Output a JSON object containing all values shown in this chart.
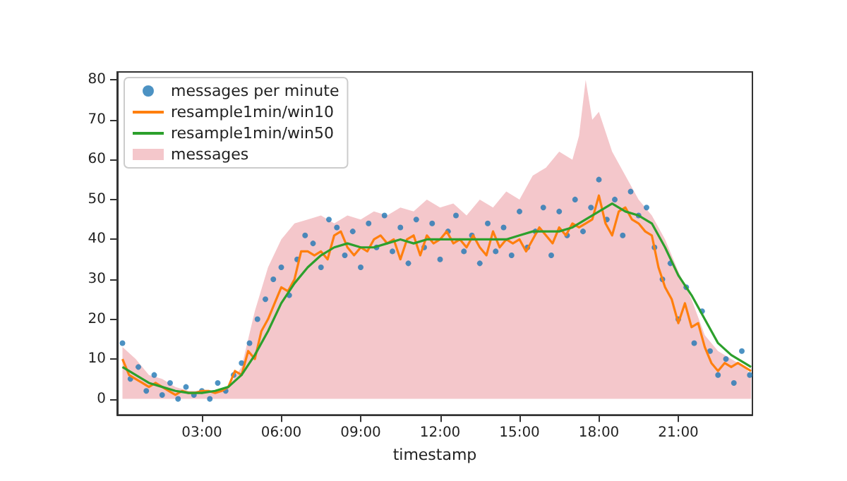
{
  "chart_data": {
    "type": "line",
    "xlabel": "timestamp",
    "xlim": [
      -0.2,
      23.8
    ],
    "ylim": [
      -4,
      82
    ],
    "xticks": [
      {
        "value": 3,
        "label": "03:00"
      },
      {
        "value": 6,
        "label": "06:00"
      },
      {
        "value": 9,
        "label": "09:00"
      },
      {
        "value": 12,
        "label": "12:00"
      },
      {
        "value": 15,
        "label": "15:00"
      },
      {
        "value": 18,
        "label": "18:00"
      },
      {
        "value": 21,
        "label": "21:00"
      }
    ],
    "yticks": [
      0,
      10,
      20,
      30,
      40,
      50,
      60,
      70,
      80
    ],
    "grid": false,
    "legend": "top left",
    "series": [
      {
        "name": "messages per minute",
        "type": "scatter",
        "marker": "circle",
        "color": "#1f77b4",
        "x": [
          0,
          0.3,
          0.6,
          0.9,
          1.2,
          1.5,
          1.8,
          2.1,
          2.4,
          2.7,
          3,
          3.3,
          3.6,
          3.9,
          4.2,
          4.5,
          4.8,
          5.1,
          5.4,
          5.7,
          6,
          6.3,
          6.6,
          6.9,
          7.2,
          7.5,
          7.8,
          8.1,
          8.4,
          8.7,
          9,
          9.3,
          9.6,
          9.9,
          10.2,
          10.5,
          10.8,
          11.1,
          11.4,
          11.7,
          12,
          12.3,
          12.6,
          12.9,
          13.2,
          13.5,
          13.8,
          14.1,
          14.4,
          14.7,
          15,
          15.3,
          15.6,
          15.9,
          16.2,
          16.5,
          16.8,
          17.1,
          17.4,
          17.7,
          18,
          18.3,
          18.6,
          18.9,
          19.2,
          19.5,
          19.8,
          20.1,
          20.4,
          20.7,
          21,
          21.3,
          21.6,
          21.9,
          22.2,
          22.5,
          22.8,
          23.1,
          23.4,
          23.7
        ],
        "values": [
          14,
          5,
          8,
          2,
          6,
          1,
          4,
          0,
          3,
          1,
          2,
          0,
          4,
          2,
          6,
          9,
          14,
          20,
          25,
          30,
          33,
          26,
          35,
          41,
          39,
          33,
          45,
          43,
          36,
          42,
          33,
          44,
          38,
          46,
          37,
          43,
          34,
          45,
          38,
          44,
          35,
          42,
          46,
          37,
          41,
          34,
          44,
          37,
          43,
          36,
          47,
          38,
          42,
          48,
          36,
          47,
          41,
          50,
          42,
          48,
          55,
          45,
          50,
          41,
          52,
          46,
          48,
          38,
          30,
          34,
          20,
          28,
          14,
          22,
          12,
          6,
          10,
          4,
          12,
          6
        ]
      },
      {
        "name": "resample1min/win10",
        "marker": "none",
        "color": "#ff7f0e",
        "x": [
          0,
          0.25,
          0.5,
          0.75,
          1,
          1.25,
          1.5,
          1.75,
          2,
          2.25,
          2.5,
          2.75,
          3,
          3.25,
          3.5,
          3.75,
          4,
          4.25,
          4.5,
          4.75,
          5,
          5.25,
          5.5,
          5.75,
          6,
          6.25,
          6.5,
          6.75,
          7,
          7.25,
          7.5,
          7.75,
          8,
          8.25,
          8.5,
          8.75,
          9,
          9.25,
          9.5,
          9.75,
          10,
          10.25,
          10.5,
          10.75,
          11,
          11.25,
          11.5,
          11.75,
          12,
          12.25,
          12.5,
          12.75,
          13,
          13.25,
          13.5,
          13.75,
          14,
          14.25,
          14.5,
          14.75,
          15,
          15.25,
          15.5,
          15.75,
          16,
          16.25,
          16.5,
          16.75,
          17,
          17.25,
          17.5,
          17.75,
          18,
          18.25,
          18.5,
          18.75,
          19,
          19.25,
          19.5,
          19.75,
          20,
          20.25,
          20.5,
          20.75,
          21,
          21.25,
          21.5,
          21.75,
          22,
          22.25,
          22.5,
          22.75,
          23,
          23.25,
          23.5,
          23.75
        ],
        "values": [
          10,
          6,
          5,
          4,
          3,
          4,
          3,
          2,
          1,
          2,
          1.5,
          1.5,
          2,
          2,
          1.5,
          2,
          3,
          7,
          6,
          12,
          10,
          17,
          20,
          24,
          28,
          27,
          30,
          37,
          37,
          36,
          37,
          35,
          41,
          42,
          38,
          36,
          38,
          37,
          40,
          41,
          39,
          40,
          35,
          40,
          41,
          36,
          41,
          39,
          40,
          42,
          39,
          40,
          38,
          41,
          38,
          36,
          42,
          38,
          40,
          39,
          40,
          37,
          40,
          43,
          41,
          39,
          43,
          41,
          44,
          43,
          44,
          45,
          51,
          44,
          41,
          47,
          48,
          45,
          44,
          42,
          41,
          33,
          28,
          25,
          19,
          24,
          18,
          19,
          13,
          9,
          7,
          9,
          8,
          9,
          8,
          7
        ]
      },
      {
        "name": "resample1min/win50",
        "marker": "none",
        "color": "#2ca02c",
        "x": [
          0,
          0.5,
          1,
          1.5,
          2,
          2.5,
          3,
          3.5,
          4,
          4.5,
          5,
          5.5,
          6,
          6.5,
          7,
          7.5,
          8,
          8.5,
          9,
          9.5,
          10,
          10.5,
          11,
          11.5,
          12,
          12.5,
          13,
          13.5,
          14,
          14.5,
          15,
          15.5,
          16,
          16.5,
          17,
          17.5,
          18,
          18.5,
          19,
          19.5,
          20,
          20.5,
          21,
          21.5,
          22,
          22.5,
          23,
          23.5,
          23.75
        ],
        "values": [
          8,
          6,
          4,
          3,
          2,
          1.5,
          1.5,
          2,
          3,
          6,
          11,
          17,
          24,
          29,
          33,
          36,
          38,
          39,
          38,
          38,
          39,
          40,
          39,
          40,
          40,
          40,
          40,
          40,
          40,
          40,
          41,
          42,
          42,
          42,
          43,
          45,
          47,
          49,
          47,
          46,
          44,
          38,
          31,
          26,
          20,
          14,
          11,
          9,
          8
        ]
      },
      {
        "name": "messages",
        "type": "area",
        "color": "#f4c7cb",
        "x": [
          0,
          0.5,
          1,
          1.5,
          2,
          2.5,
          3,
          3.5,
          4,
          4.5,
          5,
          5.5,
          6,
          6.5,
          7,
          7.5,
          8,
          8.5,
          9,
          9.5,
          10,
          10.5,
          11,
          11.5,
          12,
          12.5,
          13,
          13.5,
          14,
          14.5,
          15,
          15.5,
          16,
          16.5,
          17,
          17.25,
          17.5,
          17.75,
          18,
          18.5,
          19,
          19.5,
          20,
          20.5,
          21,
          21.5,
          22,
          22.5,
          23,
          23.5,
          23.75
        ],
        "values": [
          13,
          10,
          6,
          5,
          3,
          2,
          2,
          2,
          3,
          8,
          22,
          33,
          40,
          44,
          45,
          46,
          44,
          46,
          45,
          47,
          46,
          48,
          47,
          50,
          48,
          49,
          46,
          50,
          48,
          52,
          50,
          56,
          58,
          62,
          60,
          66,
          80,
          70,
          72,
          62,
          56,
          50,
          46,
          40,
          32,
          25,
          16,
          12,
          10,
          8,
          6
        ]
      }
    ]
  }
}
